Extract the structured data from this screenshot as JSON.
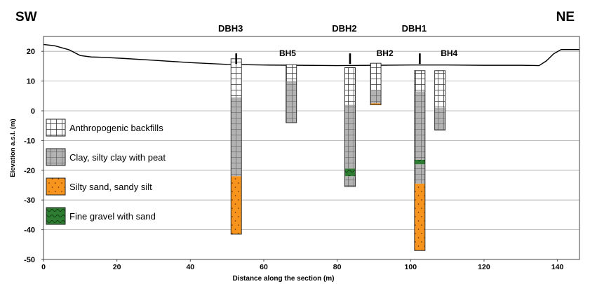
{
  "labels": {
    "left_direction": "SW",
    "right_direction": "NE",
    "xlabel": "Distance along the section (m)",
    "ylabel": "Elevation a.s.l. (m)"
  },
  "colors": {
    "backfill": "#ffffff",
    "clay": "#b3b3b3",
    "sand": "#f7941d",
    "gravel": "#2e7d32",
    "grid": "#a8a8a8",
    "ground": "#000000"
  },
  "axes": {
    "xlim": [
      0,
      146
    ],
    "ylim": [
      -50,
      25
    ],
    "xticks": [
      "0",
      "20",
      "40",
      "60",
      "80",
      "100",
      "120",
      "140"
    ],
    "xtick_values": [
      0,
      20,
      40,
      60,
      80,
      100,
      120,
      140
    ],
    "yticks": [
      "20",
      "10",
      "0",
      "-10",
      "-20",
      "-30",
      "-40",
      "-50"
    ],
    "ytick_values": [
      20,
      10,
      0,
      -10,
      -20,
      -30,
      -40,
      -50
    ]
  },
  "legend": [
    {
      "key": "backfill",
      "label": "Anthropogenic backfills"
    },
    {
      "key": "clay",
      "label": "Clay, silty clay with peat"
    },
    {
      "key": "sand",
      "label": "Silty sand, sandy silt"
    },
    {
      "key": "gravel",
      "label": "Fine gravel with sand"
    }
  ],
  "ground_profile": [
    [
      0,
      22.3
    ],
    [
      3,
      21.9
    ],
    [
      7,
      20.5
    ],
    [
      10,
      18.6
    ],
    [
      13,
      18.1
    ],
    [
      16,
      18.0
    ],
    [
      22,
      17.6
    ],
    [
      30,
      17.0
    ],
    [
      40,
      16.2
    ],
    [
      50,
      15.6
    ],
    [
      60,
      15.4
    ],
    [
      70,
      15.3
    ],
    [
      80,
      15.2
    ],
    [
      90,
      15.3
    ],
    [
      100,
      15.4
    ],
    [
      110,
      15.4
    ],
    [
      120,
      15.3
    ],
    [
      130,
      15.3
    ],
    [
      135,
      15.2
    ],
    [
      137,
      16.8
    ],
    [
      139,
      19.2
    ],
    [
      141,
      20.6
    ],
    [
      146,
      20.6
    ]
  ],
  "boreholes": [
    {
      "name": "DBH3",
      "x": 52.5,
      "top": 17.5,
      "bottom": -41.5,
      "layers": [
        {
          "type": "backfill",
          "top": 17.5,
          "bottom": 4.5
        },
        {
          "type": "clay",
          "top": 4.5,
          "bottom": -22.0
        },
        {
          "type": "sand",
          "top": -22.0,
          "bottom": -41.5
        }
      ]
    },
    {
      "name": "BH5",
      "x": 67.5,
      "top": 15.5,
      "bottom": -4.0,
      "layers": [
        {
          "type": "backfill",
          "top": 15.5,
          "bottom": 10.0
        },
        {
          "type": "clay",
          "top": 10.0,
          "bottom": -4.0
        }
      ]
    },
    {
      "name": "DBH2",
      "x": 83.5,
      "top": 14.5,
      "bottom": -25.5,
      "layers": [
        {
          "type": "backfill",
          "top": 14.5,
          "bottom": 2.0
        },
        {
          "type": "clay",
          "top": 2.0,
          "bottom": -19.5
        },
        {
          "type": "gravel",
          "top": -19.5,
          "bottom": -22.0
        },
        {
          "type": "clay",
          "top": -22.0,
          "bottom": -25.5
        }
      ]
    },
    {
      "name": "BH2",
      "x": 90.5,
      "top": 16.0,
      "bottom": 2.0,
      "layers": [
        {
          "type": "backfill",
          "top": 16.0,
          "bottom": 7.0
        },
        {
          "type": "clay",
          "top": 7.0,
          "bottom": 2.5
        },
        {
          "type": "sand",
          "top": 2.5,
          "bottom": 2.0
        }
      ]
    },
    {
      "name": "DBH1",
      "x": 102.5,
      "top": 13.5,
      "bottom": -47.0,
      "layers": [
        {
          "type": "backfill",
          "top": 13.5,
          "bottom": 6.5
        },
        {
          "type": "clay",
          "top": 6.5,
          "bottom": -16.5
        },
        {
          "type": "gravel",
          "top": -16.5,
          "bottom": -18.0
        },
        {
          "type": "clay",
          "top": -18.0,
          "bottom": -24.5
        },
        {
          "type": "sand",
          "top": -24.5,
          "bottom": -47.0
        }
      ]
    },
    {
      "name": "BH4",
      "x": 108.0,
      "top": 13.5,
      "bottom": -6.5,
      "layers": [
        {
          "type": "backfill",
          "top": 13.5,
          "bottom": 1.0
        },
        {
          "type": "clay",
          "top": 1.0,
          "bottom": -6.5
        }
      ]
    }
  ],
  "section_markers": [
    {
      "name": "DBH3",
      "x": 52.5
    },
    {
      "name": "DBH2",
      "x": 83.5
    },
    {
      "name": "DBH1",
      "x": 102.5
    }
  ],
  "plot_labels": [
    {
      "name": "BH5",
      "x": 66.5,
      "y": 19.3
    },
    {
      "name": "BH2",
      "x": 93.0,
      "y": 19.3
    },
    {
      "name": "BH4",
      "x": 110.5,
      "y": 19.3
    }
  ]
}
